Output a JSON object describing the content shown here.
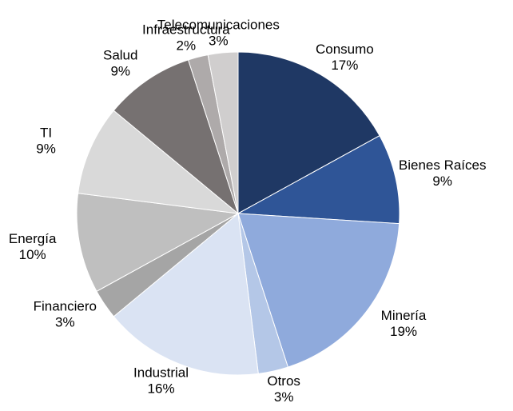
{
  "chart_data": {
    "type": "pie",
    "categories": [
      "Consumo",
      "Bienes Raíces",
      "Minería",
      "Otros",
      "Industrial",
      "Financiero",
      "Energía",
      "TI",
      "Salud",
      "Infraestructura",
      "Telecomunicaciones"
    ],
    "values": [
      17,
      9,
      19,
      3,
      16,
      3,
      10,
      9,
      9,
      2,
      3
    ],
    "value_labels": [
      "17%",
      "9%",
      "19%",
      "3%",
      "16%",
      "3%",
      "10%",
      "9%",
      "9%",
      "2%",
      "3%"
    ],
    "colors": [
      "#1f3864",
      "#2f5597",
      "#8faadc",
      "#b4c7e7",
      "#dae3f3",
      "#a5a5a5",
      "#bfbfbf",
      "#d9d9d9",
      "#767171",
      "#aeaaaa",
      "#d0cece"
    ]
  }
}
